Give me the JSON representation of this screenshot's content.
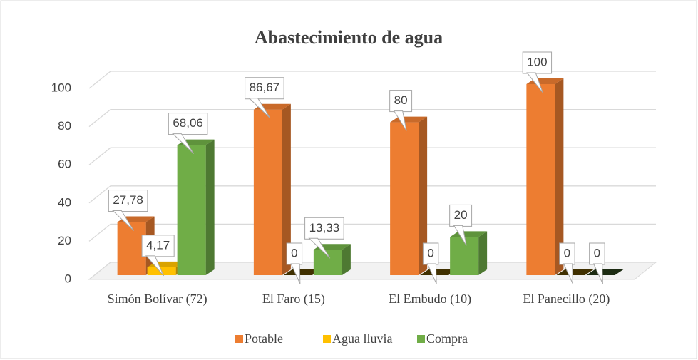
{
  "chart_data": {
    "type": "bar3d",
    "title": "Abastecimiento de agua",
    "categories": [
      "Simón Bolívar (72)",
      "El Faro (15)",
      "El Embudo (10)",
      "El Panecillo (20)"
    ],
    "series": [
      {
        "name": "Potable",
        "color": "#ed7d31",
        "values": [
          27.78,
          86.67,
          80,
          100
        ],
        "value_labels": [
          "27,78",
          "86,67",
          "80",
          "100"
        ]
      },
      {
        "name": "Agua lluvia",
        "color": "#ffc000",
        "values": [
          4.17,
          0,
          0,
          0
        ],
        "value_labels": [
          "4,17",
          "0",
          "0",
          "0"
        ]
      },
      {
        "name": "Compra",
        "color": "#70ad47",
        "values": [
          68.06,
          13.33,
          20,
          0
        ],
        "value_labels": [
          "68,06",
          "13,33",
          "20",
          "0"
        ]
      }
    ],
    "ylim": [
      0,
      100
    ],
    "yticks": [
      0,
      20,
      40,
      60,
      80,
      100
    ],
    "grid": true,
    "legend": "bottom"
  }
}
